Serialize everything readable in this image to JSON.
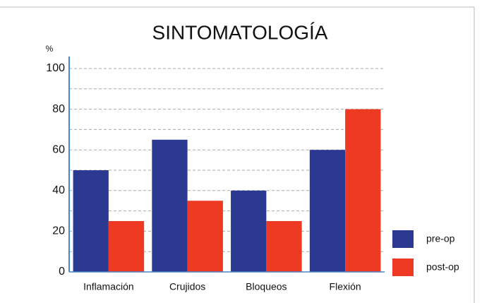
{
  "chart_data": {
    "type": "bar",
    "title": "SINTOMATOLOGÍA",
    "y_label": "%",
    "categories": [
      "Inflamación",
      "Crujidos",
      "Bloqueos",
      "Flexión"
    ],
    "series": [
      {
        "name": "pre-op",
        "color": "#2b3990",
        "values": [
          50,
          65,
          40,
          60
        ]
      },
      {
        "name": "post-op",
        "color": "#ee3a23",
        "values": [
          25,
          35,
          25,
          80
        ]
      }
    ],
    "ylim": [
      0,
      100
    ],
    "yticks": [
      0,
      20,
      40,
      60,
      80,
      100
    ],
    "minor_yticks": [
      10,
      30,
      50,
      70,
      90
    ],
    "grid": true,
    "legend": "right"
  }
}
